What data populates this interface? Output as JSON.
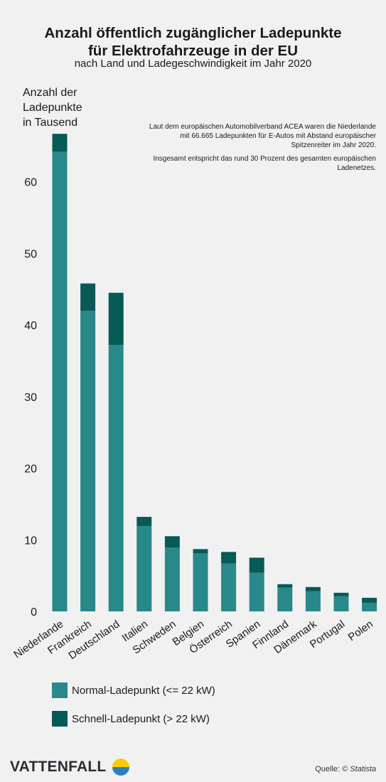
{
  "header": {
    "title_lines": [
      "Anzahl öffentlich zugänglicher Ladepunkte",
      "für Elektrofahrzeuge in der EU"
    ],
    "subtitle": "nach Land und Ladegeschwindigkeit im Jahr 2020"
  },
  "note": {
    "paragraph1": "Laut dem europäischen Automobilverband ACEA waren die Niederlande mit 66.665 Ladepunkten für E-Autos mit Abstand europäischer Spitzenreiter im Jahr 2020.",
    "paragraph2": "Insgesamt entspricht das rund 30 Prozent des gesamten europäischen Ladenetzes."
  },
  "chart_data": {
    "type": "bar",
    "stacked": true,
    "ylabel_lines": [
      "Anzahl der",
      "Ladepunkte",
      "in Tausend"
    ],
    "xlabel": "",
    "ylim": [
      0,
      70
    ],
    "yticks": [
      0,
      10,
      20,
      30,
      40,
      50,
      60
    ],
    "grid": false,
    "legend_position": "bottom-left",
    "categories": [
      "Niederlande",
      "Frankreich",
      "Deutschland",
      "Italien",
      "Schweden",
      "Belgien",
      "Österreich",
      "Spanien",
      "Finnland",
      "Dänemark",
      "Portugal",
      "Polen"
    ],
    "series": [
      {
        "name": "Normal-Ladepunkt (<= 22 kW)",
        "color": "#29888a",
        "values": [
          64.2,
          42.0,
          37.2,
          11.9,
          8.9,
          8.1,
          6.7,
          5.4,
          3.3,
          2.8,
          2.1,
          1.2
        ]
      },
      {
        "name": "Schnell-Ladepunkt (> 22 kW)",
        "color": "#075a56",
        "values": [
          2.5,
          3.8,
          7.3,
          1.3,
          1.6,
          0.6,
          1.6,
          2.1,
          0.5,
          0.6,
          0.5,
          0.7
        ]
      }
    ]
  },
  "footer": {
    "brand": "VATTENFALL",
    "source_label": "Quelle: ",
    "source_value": "© Statista"
  }
}
